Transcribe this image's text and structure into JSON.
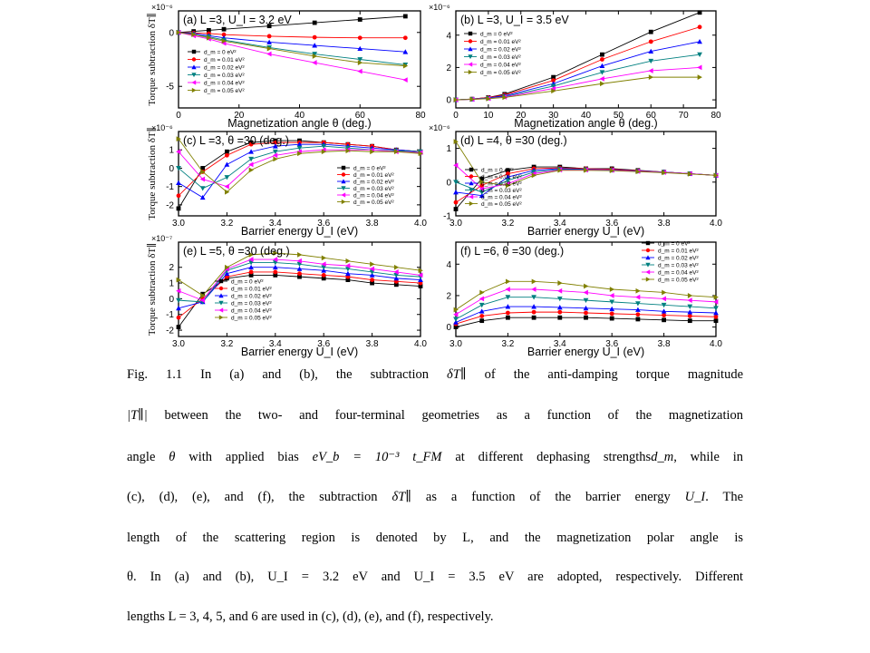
{
  "figure": {
    "y_axis_label": "Torque subtraction δT∥",
    "series_names": [
      "d_m = 0 eV²",
      "d_m = 0.01 eV²",
      "d_m = 0.02 eV²",
      "d_m = 0.03 eV²",
      "d_m = 0.04 eV²",
      "d_m = 0.05 eV²"
    ],
    "series_colors": [
      "#000000",
      "#ff0000",
      "#0000ff",
      "#008080",
      "#ff00ff",
      "#808000"
    ],
    "series_markers": [
      "square",
      "circle",
      "triangle-up",
      "triangle-down",
      "triangle-left",
      "triangle-right"
    ]
  },
  "chart_data": [
    {
      "type": "line",
      "id": "a",
      "title": "(a) L =3, U_I = 3.2 eV",
      "xlabel": "Magnetization angle θ (deg.)",
      "ylabel": "Torque subtraction δT∥",
      "y_multiplier": "×10⁻⁶",
      "xlim": [
        0,
        80
      ],
      "ylim": [
        -7,
        2
      ],
      "xticks": [
        "0",
        "20",
        "40",
        "60",
        "80"
      ],
      "xtick_values": [
        0,
        20,
        40,
        60,
        80
      ],
      "yticks": [
        "0",
        "-5"
      ],
      "ytick_values": [
        0,
        -5
      ],
      "x": [
        0,
        5,
        10,
        15,
        30,
        45,
        60,
        75
      ],
      "series": [
        {
          "name": "d_m = 0 eV²",
          "values": [
            0,
            0.1,
            0.2,
            0.3,
            0.6,
            0.9,
            1.2,
            1.5
          ]
        },
        {
          "name": "d_m = 0.01 eV²",
          "values": [
            0,
            -0.05,
            -0.1,
            -0.2,
            -0.35,
            -0.45,
            -0.5,
            -0.5
          ]
        },
        {
          "name": "d_m = 0.02 eV²",
          "values": [
            0,
            -0.1,
            -0.3,
            -0.5,
            -0.9,
            -1.2,
            -1.5,
            -1.8
          ]
        },
        {
          "name": "d_m = 0.03 eV²",
          "values": [
            0,
            -0.2,
            -0.4,
            -0.7,
            -1.4,
            -2.0,
            -2.5,
            -3.0
          ]
        },
        {
          "name": "d_m = 0.04 eV²",
          "values": [
            0,
            -0.3,
            -0.6,
            -1.0,
            -2.0,
            -2.8,
            -3.6,
            -4.4
          ]
        },
        {
          "name": "d_m = 0.05 eV²",
          "values": [
            0,
            -0.2,
            -0.5,
            -0.8,
            -1.5,
            -2.2,
            -2.8,
            -3.1
          ]
        }
      ]
    },
    {
      "type": "line",
      "id": "b",
      "title": "(b) L =3, U_I = 3.5 eV",
      "xlabel": "Magnetization angle θ (deg.)",
      "ylabel": "",
      "y_multiplier": "×10⁻⁶",
      "xlim": [
        0,
        80
      ],
      "ylim": [
        -0.5,
        5.5
      ],
      "xticks": [
        "0",
        "10",
        "20",
        "30",
        "40",
        "50",
        "60",
        "70",
        "80"
      ],
      "xtick_values": [
        0,
        10,
        20,
        30,
        40,
        50,
        60,
        70,
        80
      ],
      "yticks": [
        "0",
        "2",
        "4"
      ],
      "ytick_values": [
        0,
        2,
        4
      ],
      "x": [
        0,
        5,
        10,
        15,
        30,
        45,
        60,
        75
      ],
      "series": [
        {
          "name": "d_m = 0 eV²",
          "values": [
            0,
            0.05,
            0.15,
            0.35,
            1.4,
            2.8,
            4.2,
            5.4
          ]
        },
        {
          "name": "d_m = 0.01 eV²",
          "values": [
            0,
            0.05,
            0.15,
            0.3,
            1.2,
            2.5,
            3.6,
            4.5
          ]
        },
        {
          "name": "d_m = 0.02 eV²",
          "values": [
            0,
            0.04,
            0.12,
            0.25,
            1.0,
            2.1,
            3.0,
            3.6
          ]
        },
        {
          "name": "d_m = 0.03 eV²",
          "values": [
            0,
            0.04,
            0.1,
            0.2,
            0.85,
            1.7,
            2.4,
            2.8
          ]
        },
        {
          "name": "d_m = 0.04 eV²",
          "values": [
            0,
            0.03,
            0.08,
            0.17,
            0.7,
            1.3,
            1.8,
            2.0
          ]
        },
        {
          "name": "d_m = 0.05 eV²",
          "values": [
            0,
            0.03,
            0.07,
            0.15,
            0.55,
            1.0,
            1.4,
            1.4
          ]
        }
      ]
    },
    {
      "type": "line",
      "id": "c",
      "title": "(c) L =3, θ =30 (deg.)",
      "xlabel": "Barrier energy U_I (eV)",
      "ylabel": "Torque subtraction δT∥",
      "y_multiplier": "×10⁻⁶",
      "xlim": [
        3.0,
        4.0
      ],
      "ylim": [
        -2.6,
        2.0
      ],
      "xticks": [
        "3.0",
        "3.2",
        "3.4",
        "3.6",
        "3.8",
        "4.0"
      ],
      "xtick_values": [
        3.0,
        3.2,
        3.4,
        3.6,
        3.8,
        4.0
      ],
      "yticks": [
        "1",
        "0",
        "-1",
        "-2"
      ],
      "ytick_values": [
        1,
        0,
        -1,
        -2
      ],
      "x": [
        3.0,
        3.1,
        3.2,
        3.3,
        3.4,
        3.5,
        3.6,
        3.7,
        3.8,
        3.9,
        4.0
      ],
      "series": [
        {
          "name": "d_m = 0 eV²",
          "values": [
            -2.2,
            0.0,
            0.9,
            1.4,
            1.5,
            1.5,
            1.4,
            1.3,
            1.2,
            1.0,
            0.9
          ]
        },
        {
          "name": "d_m = 0.01 eV²",
          "values": [
            -1.5,
            -0.2,
            0.7,
            1.3,
            1.4,
            1.4,
            1.4,
            1.3,
            1.2,
            1.0,
            0.9
          ]
        },
        {
          "name": "d_m = 0.02 eV²",
          "values": [
            -0.8,
            -1.6,
            0.2,
            0.9,
            1.2,
            1.3,
            1.3,
            1.2,
            1.1,
            1.0,
            0.9
          ]
        },
        {
          "name": "d_m = 0.03 eV²",
          "values": [
            0.0,
            -1.1,
            -0.5,
            0.5,
            0.9,
            1.1,
            1.2,
            1.1,
            1.0,
            0.95,
            0.9
          ]
        },
        {
          "name": "d_m = 0.04 eV²",
          "values": [
            0.9,
            -0.6,
            -1.0,
            0.2,
            0.7,
            0.9,
            1.0,
            1.0,
            1.0,
            0.9,
            0.85
          ]
        },
        {
          "name": "d_m = 0.05 eV²",
          "values": [
            1.6,
            -0.2,
            -1.3,
            -0.1,
            0.5,
            0.8,
            0.9,
            0.95,
            0.9,
            0.9,
            0.8
          ]
        }
      ]
    },
    {
      "type": "line",
      "id": "d",
      "title": "(d) L =4, θ =30 (deg.)",
      "xlabel": "Barrier energy U_I (eV)",
      "ylabel": "",
      "y_multiplier": "×10⁻⁶",
      "xlim": [
        3.0,
        4.0
      ],
      "ylim": [
        -1.0,
        1.5
      ],
      "xticks": [
        "3.0",
        "3.2",
        "3.4",
        "3.6",
        "3.8",
        "4.0"
      ],
      "xtick_values": [
        3.0,
        3.2,
        3.4,
        3.6,
        3.8,
        4.0
      ],
      "yticks": [
        "1",
        "0",
        "-1"
      ],
      "ytick_values": [
        1,
        0,
        -1
      ],
      "x": [
        3.0,
        3.1,
        3.2,
        3.3,
        3.4,
        3.5,
        3.6,
        3.7,
        3.8,
        3.9,
        4.0
      ],
      "series": [
        {
          "name": "d_m = 0 eV²",
          "values": [
            -0.8,
            0.1,
            0.35,
            0.45,
            0.45,
            0.4,
            0.4,
            0.35,
            0.3,
            0.25,
            0.2
          ]
        },
        {
          "name": "d_m = 0.01 eV²",
          "values": [
            -0.6,
            -0.1,
            0.25,
            0.4,
            0.42,
            0.4,
            0.38,
            0.34,
            0.3,
            0.25,
            0.2
          ]
        },
        {
          "name": "d_m = 0.02 eV²",
          "values": [
            -0.3,
            -0.4,
            0.15,
            0.35,
            0.4,
            0.38,
            0.36,
            0.33,
            0.3,
            0.25,
            0.2
          ]
        },
        {
          "name": "d_m = 0.03 eV²",
          "values": [
            0.0,
            -0.3,
            0.05,
            0.3,
            0.38,
            0.37,
            0.35,
            0.32,
            0.29,
            0.25,
            0.2
          ]
        },
        {
          "name": "d_m = 0.04 eV²",
          "values": [
            0.5,
            -0.2,
            -0.05,
            0.25,
            0.36,
            0.36,
            0.35,
            0.32,
            0.29,
            0.25,
            0.2
          ]
        },
        {
          "name": "d_m = 0.05 eV²",
          "values": [
            1.2,
            0.0,
            -0.1,
            0.2,
            0.35,
            0.35,
            0.34,
            0.31,
            0.28,
            0.24,
            0.2
          ]
        }
      ]
    },
    {
      "type": "line",
      "id": "e",
      "title": "(e) L =5, θ =30 (deg.)",
      "xlabel": "Barrier energy U_I (eV)",
      "ylabel": "Torque subtraction δT∥",
      "y_multiplier": "×10⁻⁷",
      "xlim": [
        3.0,
        4.0
      ],
      "ylim": [
        -2.4,
        3.6
      ],
      "xticks": [
        "3.0",
        "3.2",
        "3.4",
        "3.6",
        "3.8",
        "4.0"
      ],
      "xtick_values": [
        3.0,
        3.2,
        3.4,
        3.6,
        3.8,
        4.0
      ],
      "yticks": [
        "2",
        "1",
        "0",
        "-1",
        "-2"
      ],
      "ytick_values": [
        2,
        1,
        0,
        -1,
        -2
      ],
      "x": [
        3.0,
        3.1,
        3.2,
        3.3,
        3.4,
        3.5,
        3.6,
        3.7,
        3.8,
        3.9,
        4.0
      ],
      "series": [
        {
          "name": "d_m = 0 eV²",
          "values": [
            -1.8,
            0.3,
            1.3,
            1.5,
            1.5,
            1.4,
            1.3,
            1.2,
            1.0,
            0.9,
            0.8
          ]
        },
        {
          "name": "d_m = 0.01 eV²",
          "values": [
            -1.2,
            0.0,
            1.4,
            1.7,
            1.7,
            1.6,
            1.5,
            1.4,
            1.2,
            1.1,
            1.0
          ]
        },
        {
          "name": "d_m = 0.02 eV²",
          "values": [
            -0.6,
            -0.2,
            1.6,
            2.0,
            2.0,
            1.9,
            1.8,
            1.6,
            1.5,
            1.3,
            1.2
          ]
        },
        {
          "name": "d_m = 0.03 eV²",
          "values": [
            -0.1,
            -0.2,
            1.8,
            2.3,
            2.3,
            2.2,
            2.0,
            1.9,
            1.7,
            1.5,
            1.4
          ]
        },
        {
          "name": "d_m = 0.04 eV²",
          "values": [
            0.5,
            -0.1,
            1.9,
            2.5,
            2.5,
            2.4,
            2.2,
            2.1,
            1.9,
            1.7,
            1.5
          ]
        },
        {
          "name": "d_m = 0.05 eV²",
          "values": [
            1.2,
            0.2,
            2.0,
            2.8,
            2.9,
            2.8,
            2.6,
            2.4,
            2.2,
            2.0,
            1.8
          ]
        }
      ]
    },
    {
      "type": "line",
      "id": "f",
      "title": "(f) L =6, θ =30 (deg.)",
      "xlabel": "Barrier energy U_I (eV)",
      "ylabel": "",
      "y_multiplier": "",
      "xlim": [
        3.0,
        4.0
      ],
      "ylim": [
        -0.6,
        5.4
      ],
      "xticks": [
        "3.0",
        "3.2",
        "3.4",
        "3.6",
        "3.8",
        "4.0"
      ],
      "xtick_values": [
        3.0,
        3.2,
        3.4,
        3.6,
        3.8,
        4.0
      ],
      "yticks": [
        "4",
        "2",
        "0"
      ],
      "ytick_values": [
        4,
        2,
        0
      ],
      "x": [
        3.0,
        3.1,
        3.2,
        3.3,
        3.4,
        3.5,
        3.6,
        3.7,
        3.8,
        3.9,
        4.0
      ],
      "series": [
        {
          "name": "d_m = 0 eV²",
          "values": [
            0.0,
            0.4,
            0.6,
            0.6,
            0.6,
            0.6,
            0.55,
            0.5,
            0.45,
            0.4,
            0.4
          ]
        },
        {
          "name": "d_m = 0.01 eV²",
          "values": [
            0.2,
            0.7,
            0.9,
            0.95,
            0.95,
            0.9,
            0.85,
            0.8,
            0.75,
            0.7,
            0.65
          ]
        },
        {
          "name": "d_m = 0.02 eV²",
          "values": [
            0.3,
            1.0,
            1.3,
            1.3,
            1.25,
            1.2,
            1.15,
            1.1,
            1.0,
            0.95,
            0.9
          ]
        },
        {
          "name": "d_m = 0.03 eV²",
          "values": [
            0.5,
            1.4,
            1.9,
            1.9,
            1.8,
            1.7,
            1.6,
            1.5,
            1.4,
            1.3,
            1.2
          ]
        },
        {
          "name": "d_m = 0.04 eV²",
          "values": [
            0.8,
            1.8,
            2.4,
            2.4,
            2.3,
            2.2,
            2.0,
            1.9,
            1.8,
            1.7,
            1.6
          ]
        },
        {
          "name": "d_m = 0.05 eV²",
          "values": [
            1.1,
            2.2,
            2.9,
            2.9,
            2.8,
            2.6,
            2.4,
            2.3,
            2.2,
            2.0,
            1.9
          ]
        }
      ]
    }
  ],
  "caption": {
    "line1_a": "Fig. 1.1 In (a) and (b), the subtraction",
    "line1_sym": "δT∥",
    "line1_b": "of the anti-damping torque magnitude",
    "line2_sym": "|T∥|",
    "line2_b": "between the two- and four-terminal geometries as a function of the magnetization",
    "line3_a": "angle",
    "line3_sym1": "θ",
    "line3_b": "with applied bias",
    "line3_formula": "eV_b = 10⁻³ t_FM",
    "line3_c": "at different dephasing strengths",
    "line3_sym2": "d_m",
    "line3_d": ", while in",
    "line4_a": "(c), (d), (e), and (f), the subtraction",
    "line4_sym": "δT∥",
    "line4_b": "as a function of the barrier energy",
    "line4_sym2": "U_I",
    "line4_c": ". The",
    "line5": "length of the scattering region is denoted by L, and the magnetization polar angle is",
    "line6": "θ. In (a) and (b), U_I = 3.2 eV and U_I = 3.5 eV are adopted, respectively. Different",
    "line7": "lengths L = 3, 4, 5, and 6 are used in (c), (d), (e), and (f), respectively."
  }
}
